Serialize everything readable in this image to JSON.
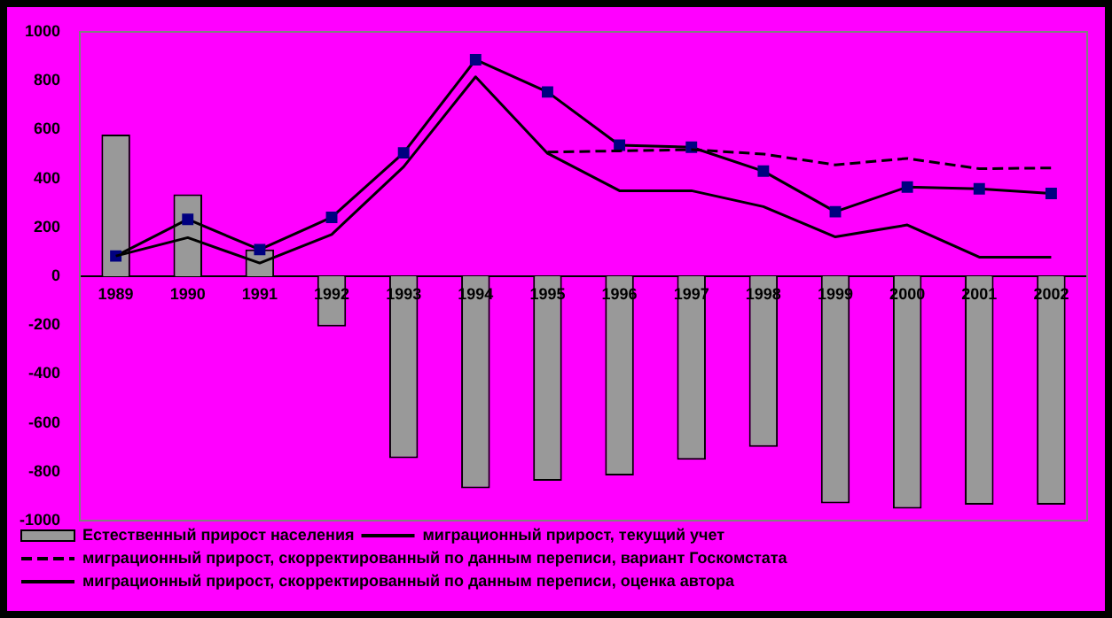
{
  "chart_data": {
    "type": "bar",
    "categories": [
      "1989",
      "1990",
      "1991",
      "1992",
      "1993",
      "1994",
      "1995",
      "1996",
      "1997",
      "1998",
      "1999",
      "2000",
      "2001",
      "2002"
    ],
    "series": [
      {
        "name": "Естественный прирост населения",
        "color": "#999999",
        "values": [
          580,
          335,
          110,
          -206,
          -745,
          -868,
          -837,
          -815,
          -751,
          -698,
          -929,
          -951,
          -935,
          -935
        ]
      },
      {
        "name": "миграционный прирост, текущий учет",
        "type": "line",
        "color": "#000000",
        "marker": "none",
        "line_style": "solid",
        "values": [
          83,
          158,
          54,
          171,
          448,
          816,
          503,
          350,
          350,
          285,
          161,
          210,
          78,
          78
        ]
      },
      {
        "name": "миграционный прирост, скорректированный по данным переписи, вариант Госкомстата",
        "type": "line",
        "color": "#000000",
        "marker": "none",
        "line_style": "dashed",
        "values": [
          null,
          null,
          null,
          null,
          null,
          null,
          508,
          513,
          518,
          500,
          456,
          482,
          440,
          443
        ]
      },
      {
        "name": "миграционный прирост, скорректированный по данным переписи, оценка автора",
        "type": "line",
        "color": "#000080",
        "marker": "square",
        "line_style": "solid",
        "values": [
          83,
          233,
          109,
          241,
          505,
          886,
          754,
          536,
          528,
          430,
          264,
          365,
          358,
          339
        ]
      }
    ],
    "ylim": [
      -1000,
      1000
    ],
    "yticks": [
      -1000,
      -800,
      -600,
      -400,
      -200,
      0,
      200,
      400,
      600,
      800,
      1000
    ],
    "grid": false,
    "legend": "bottom"
  }
}
